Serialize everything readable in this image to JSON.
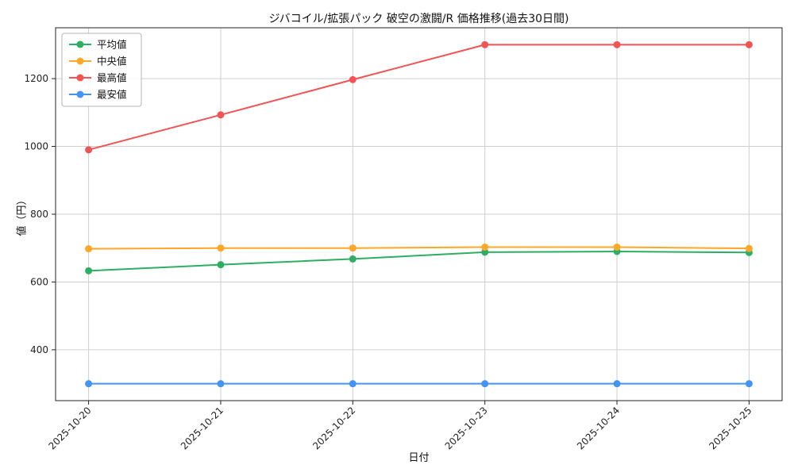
{
  "chart_data": {
    "type": "line",
    "title": "ジバコイル/拡張パック 破空の激闘/R 価格推移(過去30日間)",
    "xlabel": "日付",
    "ylabel": "値（円）",
    "categories": [
      "2025-10-20",
      "2025-10-21",
      "2025-10-22",
      "2025-10-23",
      "2025-10-24",
      "2025-10-25"
    ],
    "series": [
      {
        "name": "平均値",
        "color": "#2eae62",
        "values": [
          633,
          651,
          668,
          688,
          690,
          687
        ]
      },
      {
        "name": "中央値",
        "color": "#ffa726",
        "values": [
          698,
          700,
          700,
          703,
          703,
          699
        ]
      },
      {
        "name": "最高値",
        "color": "#f25353",
        "values": [
          990,
          1093,
          1197,
          1300,
          1300,
          1300
        ]
      },
      {
        "name": "最安値",
        "color": "#4593f2",
        "values": [
          300,
          300,
          300,
          300,
          300,
          300
        ]
      }
    ],
    "ylim": [
      250,
      1350
    ],
    "yticks": [
      400,
      600,
      800,
      1000,
      1200
    ],
    "grid": true,
    "legend_position": "upper-left",
    "colors": {
      "grid": "#cfcfcf",
      "spine": "#222222",
      "tick_text": "#222222",
      "legend_border": "#b5b5b5"
    }
  }
}
